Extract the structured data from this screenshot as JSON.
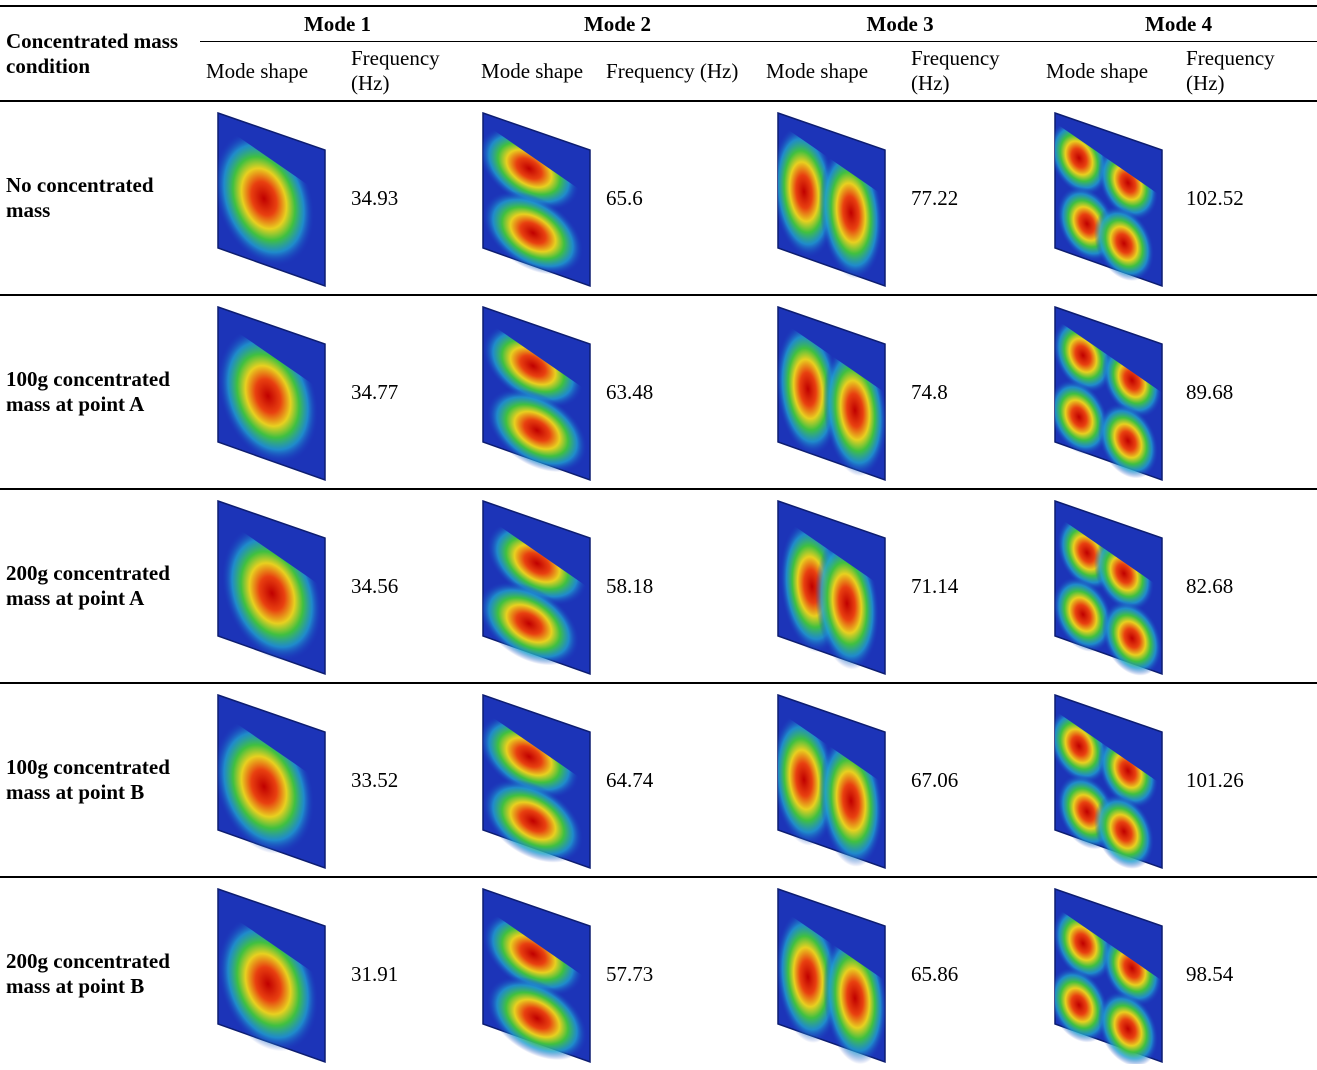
{
  "header": {
    "condition": "Concentrated mass condition",
    "modes": [
      "Mode 1",
      "Mode 2",
      "Mode 3",
      "Mode 4"
    ],
    "shape": "Mode shape",
    "frequency": "Frequency (Hz)"
  },
  "table": {
    "rows": [
      {
        "label": "No concentrated mass",
        "frequencies": [
          34.93,
          65.6,
          77.22,
          102.52
        ]
      },
      {
        "label": "100g concentrated mass at point A",
        "frequencies": [
          34.77,
          63.48,
          74.8,
          89.68
        ]
      },
      {
        "label": "200g concentrated mass at point A",
        "frequencies": [
          34.56,
          58.18,
          71.14,
          82.68
        ]
      },
      {
        "label": "100g concentrated mass at point B",
        "frequencies": [
          33.52,
          64.74,
          67.06,
          101.26
        ]
      },
      {
        "label": "200g concentrated mass at point B",
        "frequencies": [
          31.91,
          57.73,
          65.86,
          98.54
        ]
      }
    ]
  }
}
